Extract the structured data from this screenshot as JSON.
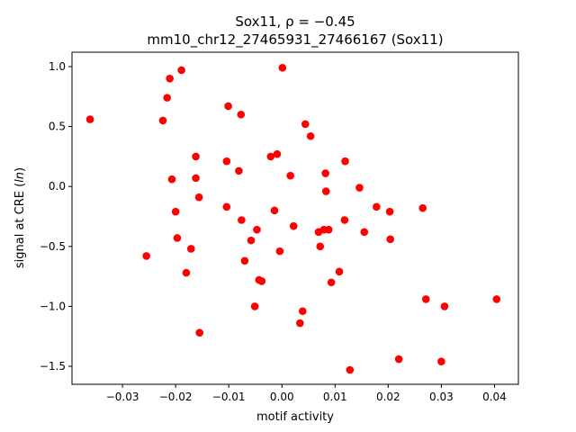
{
  "chart_data": {
    "type": "scatter",
    "title_line1": "Sox11, ρ = −0.45",
    "title_line2": "mm10_chr12_27465931_27466167 (Sox11)",
    "xlabel": "motif activity",
    "ylabel": "signal at CRE (ln)",
    "xlim": [
      -0.0395,
      0.0445
    ],
    "ylim": [
      -1.65,
      1.12
    ],
    "xticks": [
      -0.03,
      -0.02,
      -0.01,
      0.0,
      0.01,
      0.02,
      0.03,
      0.04
    ],
    "xtick_labels": [
      "−0.03",
      "−0.02",
      "−0.01",
      "0.00",
      "0.01",
      "0.02",
      "0.03",
      "0.04"
    ],
    "yticks": [
      -1.5,
      -1.0,
      -0.5,
      0.0,
      0.5,
      1.0
    ],
    "ytick_labels": [
      "−1.5",
      "−1.0",
      "−0.5",
      "0.0",
      "0.5",
      "1.0"
    ],
    "grid": false,
    "marker_color": "#ff0000",
    "points": [
      {
        "x": -0.0361,
        "y": 0.56
      },
      {
        "x": -0.0255,
        "y": -0.58
      },
      {
        "x": -0.0224,
        "y": 0.55
      },
      {
        "x": -0.0216,
        "y": 0.74
      },
      {
        "x": -0.0211,
        "y": 0.9
      },
      {
        "x": -0.0207,
        "y": 0.06
      },
      {
        "x": -0.02,
        "y": -0.21
      },
      {
        "x": -0.0197,
        "y": -0.43
      },
      {
        "x": -0.0189,
        "y": 0.97
      },
      {
        "x": -0.018,
        "y": -0.72
      },
      {
        "x": -0.0171,
        "y": -0.52
      },
      {
        "x": -0.0162,
        "y": 0.25
      },
      {
        "x": -0.0162,
        "y": 0.07
      },
      {
        "x": -0.0156,
        "y": -0.09
      },
      {
        "x": -0.0155,
        "y": -1.22
      },
      {
        "x": -0.0104,
        "y": 0.21
      },
      {
        "x": -0.0104,
        "y": -0.17
      },
      {
        "x": -0.0101,
        "y": 0.67
      },
      {
        "x": -0.0081,
        "y": 0.13
      },
      {
        "x": -0.0077,
        "y": 0.6
      },
      {
        "x": -0.0076,
        "y": -0.28
      },
      {
        "x": -0.007,
        "y": -0.62
      },
      {
        "x": -0.0058,
        "y": -0.45
      },
      {
        "x": -0.0051,
        "y": -1.0
      },
      {
        "x": -0.0047,
        "y": -0.36
      },
      {
        "x": -0.0043,
        "y": -0.78
      },
      {
        "x": -0.0038,
        "y": -0.79
      },
      {
        "x": -0.0021,
        "y": 0.25
      },
      {
        "x": -0.0014,
        "y": -0.2
      },
      {
        "x": -0.0009,
        "y": 0.27
      },
      {
        "x": -0.0004,
        "y": -0.54
      },
      {
        "x": 0.0001,
        "y": 0.99
      },
      {
        "x": 0.0016,
        "y": 0.09
      },
      {
        "x": 0.0022,
        "y": -0.33
      },
      {
        "x": 0.0034,
        "y": -1.14
      },
      {
        "x": 0.0039,
        "y": -1.04
      },
      {
        "x": 0.0044,
        "y": 0.52
      },
      {
        "x": 0.0054,
        "y": 0.42
      },
      {
        "x": 0.0069,
        "y": -0.38
      },
      {
        "x": 0.0072,
        "y": -0.5
      },
      {
        "x": 0.0079,
        "y": -0.36
      },
      {
        "x": 0.0082,
        "y": 0.11
      },
      {
        "x": 0.0083,
        "y": -0.04
      },
      {
        "x": 0.0088,
        "y": -0.36
      },
      {
        "x": 0.0093,
        "y": -0.8
      },
      {
        "x": 0.0108,
        "y": -0.71
      },
      {
        "x": 0.0118,
        "y": -0.28
      },
      {
        "x": 0.0119,
        "y": 0.21
      },
      {
        "x": 0.0128,
        "y": -1.53
      },
      {
        "x": 0.0146,
        "y": -0.01
      },
      {
        "x": 0.0155,
        "y": -0.38
      },
      {
        "x": 0.0178,
        "y": -0.17
      },
      {
        "x": 0.0203,
        "y": -0.21
      },
      {
        "x": 0.0204,
        "y": -0.44
      },
      {
        "x": 0.022,
        "y": -1.44
      },
      {
        "x": 0.0265,
        "y": -0.18
      },
      {
        "x": 0.0271,
        "y": -0.94
      },
      {
        "x": 0.03,
        "y": -1.46
      },
      {
        "x": 0.0306,
        "y": -1.0
      },
      {
        "x": 0.0404,
        "y": -0.94
      }
    ]
  }
}
